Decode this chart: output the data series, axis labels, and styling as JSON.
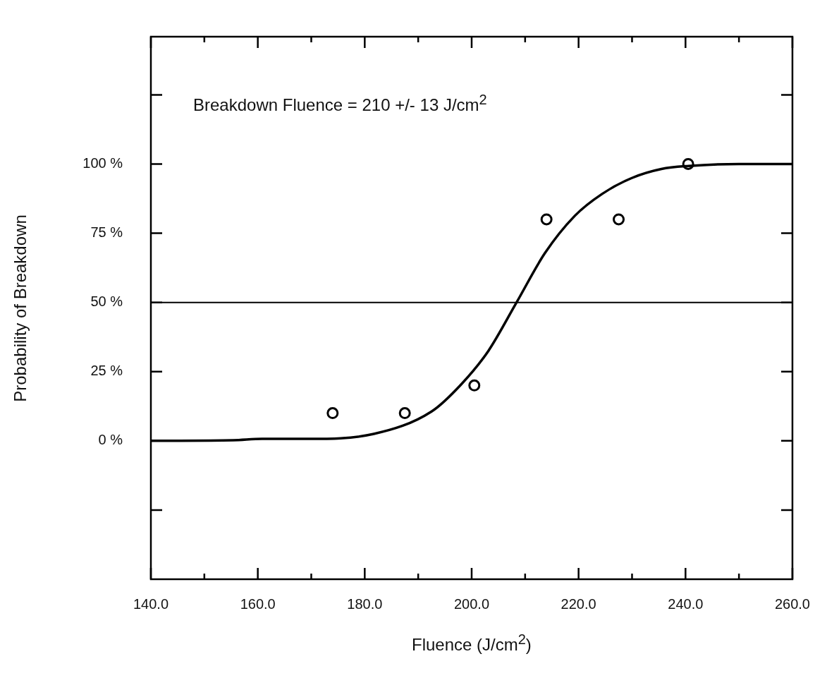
{
  "chart_data": {
    "type": "scatter",
    "xlabel": "Fluence (J/cm$^{2}$)",
    "ylabel": "Probability of Breakdown",
    "annotations": [
      "Breakdown Fluence = 210 +/- 13 J/cm$^{2}$"
    ],
    "xlim": [
      140,
      260
    ],
    "ylim": [
      -50,
      146
    ],
    "xticks": [
      {
        "value": 140,
        "label": "140.0"
      },
      {
        "value": 150,
        "label": null
      },
      {
        "value": 160,
        "label": "160.0"
      },
      {
        "value": 170,
        "label": null
      },
      {
        "value": 180,
        "label": "180.0"
      },
      {
        "value": 190,
        "label": null
      },
      {
        "value": 200,
        "label": "200.0"
      },
      {
        "value": 210,
        "label": null
      },
      {
        "value": 220,
        "label": "220.0"
      },
      {
        "value": 230,
        "label": null
      },
      {
        "value": 240,
        "label": "240.0"
      },
      {
        "value": 250,
        "label": null
      },
      {
        "value": 260,
        "label": "260.0"
      }
    ],
    "yticks": [
      {
        "value": -25,
        "label": null
      },
      {
        "value": 0,
        "label": "0 %"
      },
      {
        "value": 25,
        "label": "25 %"
      },
      {
        "value": 50,
        "label": "50 %"
      },
      {
        "value": 75,
        "label": "75 %"
      },
      {
        "value": 100,
        "label": "100 %"
      },
      {
        "value": 125,
        "label": null
      }
    ],
    "grid": false,
    "legend": false,
    "ref_lines": [
      {
        "axis": "y",
        "value": 50,
        "color": "#000000"
      }
    ],
    "series": [
      {
        "marker": "circle",
        "color": "#000000",
        "x": [
          174,
          187.5,
          200.5,
          214,
          227.5,
          240.5
        ],
        "values": [
          10,
          10,
          20,
          80,
          80,
          100
        ]
      },
      {
        "type": "line",
        "marker": "none",
        "line_style": "solid",
        "color": "#000000",
        "x": [
          140,
          155.4,
          160.8,
          169.3,
          181.7,
          192.5,
          197.9,
          203.1,
          208.4,
          213.7,
          219.3,
          224.4,
          229.9,
          235.5,
          240.6,
          250,
          260
        ],
        "values": [
          0,
          0.2,
          0.7,
          0.7,
          2.5,
          10.6,
          20.1,
          32.4,
          50,
          67.8,
          81.3,
          89.2,
          94.9,
          98.2,
          99.3,
          100,
          100
        ]
      }
    ]
  }
}
